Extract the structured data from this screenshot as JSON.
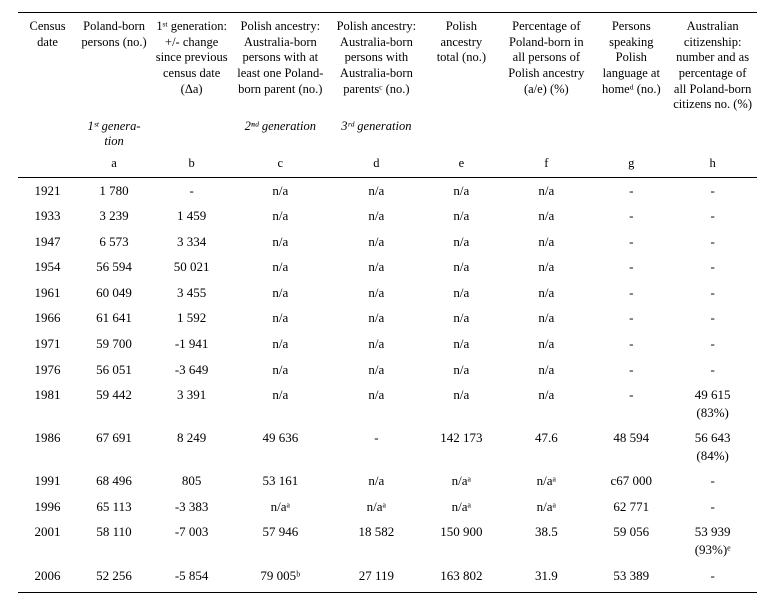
{
  "columns": {
    "date": {
      "header": "Census date",
      "sub": "",
      "letter": ""
    },
    "a": {
      "header": "Poland-born per­sons (no.)",
      "sub": "1ˢᵗ genera­tion",
      "letter": "a"
    },
    "b": {
      "header": "1ˢᵗ genera­tion: +/- change since previ­ous census date (Δa)",
      "sub": "",
      "letter": "b"
    },
    "c": {
      "header": "Polish ances­try: Australia-born persons with at least one Poland-born parent (no.)",
      "sub": "2ⁿᵈ generation",
      "letter": "c"
    },
    "d": {
      "header": "Polish ances­try: Australia-born persons with Austra­lia-born par­entsᶜ (no.)",
      "sub": "3ʳᵈ generation",
      "letter": "d"
    },
    "e": {
      "header": "Polish ancestry total (no.)",
      "sub": "",
      "letter": "e"
    },
    "f": {
      "header": "Percentage of Poland-born in all persons of Polish ancestry (a/e) (%)",
      "sub": "",
      "letter": "f"
    },
    "g": {
      "header": "Persons speaking Polish language at homeᵈ (no.)",
      "sub": "",
      "letter": "g"
    },
    "h": {
      "header": "Australian citizenship: number and as percent­age of all Poland-born citizens no. (%)",
      "sub": "",
      "letter": "h"
    }
  },
  "rows": [
    {
      "date": "1921",
      "a": "1 780",
      "b": "-",
      "c": "n/a",
      "d": "n/a",
      "e": "n/a",
      "f": "n/a",
      "g": "-",
      "h": "-"
    },
    {
      "date": "1933",
      "a": "3 239",
      "b": "1 459",
      "c": "n/a",
      "d": "n/a",
      "e": "n/a",
      "f": "n/a",
      "g": "-",
      "h": "-"
    },
    {
      "date": "1947",
      "a": "6 573",
      "b": "3 334",
      "c": "n/a",
      "d": "n/a",
      "e": "n/a",
      "f": "n/a",
      "g": "-",
      "h": "-"
    },
    {
      "date": "1954",
      "a": "56 594",
      "b": "50 021",
      "c": "n/a",
      "d": "n/a",
      "e": "n/a",
      "f": "n/a",
      "g": "-",
      "h": "-"
    },
    {
      "date": "1961",
      "a": "60 049",
      "b": "3 455",
      "c": "n/a",
      "d": "n/a",
      "e": "n/a",
      "f": "n/a",
      "g": "-",
      "h": "-"
    },
    {
      "date": "1966",
      "a": "61 641",
      "b": "1 592",
      "c": "n/a",
      "d": "n/a",
      "e": "n/a",
      "f": "n/a",
      "g": "-",
      "h": "-"
    },
    {
      "date": "1971",
      "a": "59 700",
      "b": "-1 941",
      "c": "n/a",
      "d": "n/a",
      "e": "n/a",
      "f": "n/a",
      "g": "-",
      "h": "-"
    },
    {
      "date": "1976",
      "a": "56 051",
      "b": "-3 649",
      "c": "n/a",
      "d": "n/a",
      "e": "n/a",
      "f": "n/a",
      "g": "-",
      "h": "-"
    },
    {
      "date": "1981",
      "a": "59 442",
      "b": "3 391",
      "c": "n/a",
      "d": "n/a",
      "e": "n/a",
      "f": "n/a",
      "g": "-",
      "h": "49 615 (83%)"
    },
    {
      "date": "1986",
      "a": "67 691",
      "b": "8 249",
      "c": "49 636",
      "d": "-",
      "e": "142 173",
      "f": "47.6",
      "g": "48 594",
      "h": "56 643 (84%)"
    },
    {
      "date": "1991",
      "a": "68 496",
      "b": "805",
      "c": "53 161",
      "d": "n/a",
      "e": "n/aᵃ",
      "f": "n/aᵃ",
      "g": "c67 000",
      "h": "-"
    },
    {
      "date": "1996",
      "a": "65 113",
      "b": "-3 383",
      "c": "n/aᵃ",
      "d": "n/aᵃ",
      "e": "n/aᵃ",
      "f": "n/aᵃ",
      "g": "62 771",
      "h": "-"
    },
    {
      "date": "2001",
      "a": "58 110",
      "b": "-7 003",
      "c": "57 946",
      "d": "18 582",
      "e": "150 900",
      "f": "38.5",
      "g": "59 056",
      "h": "53 939 (93%)ᵉ"
    },
    {
      "date": "2006",
      "a": "52 256",
      "b": "-5 854",
      "c": "79 005ᵇ",
      "d": "27 119",
      "e": "163 802",
      "f": "31.9",
      "g": "53 389",
      "h": "-"
    }
  ]
}
